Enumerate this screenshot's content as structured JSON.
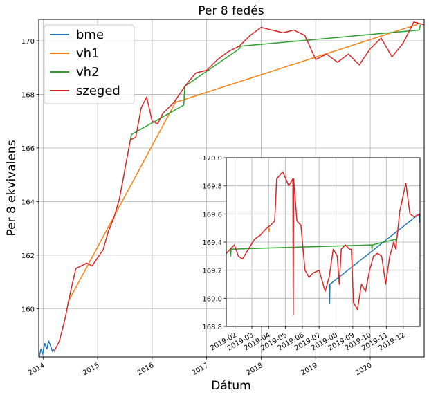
{
  "colors": {
    "bme": "#1f77b4",
    "vh1": "#ff7f0e",
    "vh2": "#2ca02c",
    "szeged": "#d62728",
    "grid": "#b0b0b0",
    "axis": "#000000"
  },
  "chart_data": [
    {
      "type": "line",
      "title": "Per 8 fedés",
      "xlabel": "Dátum",
      "ylabel": "Per 8 ekvivalens",
      "xlim": [
        2013.92,
        2020.99
      ],
      "ylim": [
        158.2,
        170.8
      ],
      "grid": true,
      "legend": "top-left",
      "x_ticks": [
        2014,
        2015,
        2016,
        2017,
        2018,
        2019,
        2020
      ],
      "x_tick_labels": [
        "2014",
        "2015",
        "2016",
        "2017",
        "2018",
        "2019",
        "2020"
      ],
      "y_ticks": [
        160,
        162,
        164,
        166,
        168,
        170
      ],
      "y_tick_labels": [
        "160",
        "162",
        "164",
        "166",
        "168",
        "170"
      ],
      "series": [
        {
          "name": "bme",
          "x": [
            2013.93,
            2013.96,
            2013.99,
            2014.03,
            2014.07,
            2014.1,
            2014.14,
            2014.17,
            2014.2
          ],
          "y": [
            158.2,
            158.5,
            158.3,
            158.7,
            158.5,
            158.8,
            158.6,
            158.4,
            158.5
          ]
        },
        {
          "name": "vh1",
          "x": [
            2014.45,
            2014.47,
            2016.4,
            2016.42,
            2020.85,
            2020.87
          ],
          "y": [
            160.2,
            160.3,
            167.6,
            167.7,
            170.6,
            170.7
          ]
        },
        {
          "name": "vh2",
          "x": [
            2015.6,
            2015.62,
            2016.58,
            2016.6,
            2017.6,
            2017.62,
            2020.9,
            2020.92
          ],
          "y": [
            166.3,
            166.5,
            167.6,
            168.3,
            169.7,
            169.8,
            170.4,
            170.6
          ]
        },
        {
          "name": "szeged",
          "x": [
            2014.2,
            2014.3,
            2014.4,
            2014.5,
            2014.6,
            2014.8,
            2014.9,
            2015.0,
            2015.1,
            2015.2,
            2015.3,
            2015.4,
            2015.5,
            2015.6,
            2015.7,
            2015.8,
            2015.9,
            2016.0,
            2016.1,
            2016.2,
            2016.4,
            2016.6,
            2016.8,
            2017.0,
            2017.2,
            2017.4,
            2017.6,
            2017.8,
            2018.0,
            2018.2,
            2018.4,
            2018.6,
            2018.8,
            2019.0,
            2019.2,
            2019.4,
            2019.6,
            2019.8,
            2020.0,
            2020.2,
            2020.4,
            2020.6,
            2020.8,
            2020.99
          ],
          "y": [
            158.4,
            158.8,
            159.6,
            160.6,
            161.5,
            161.7,
            161.6,
            161.9,
            162.2,
            162.9,
            163.4,
            164.1,
            165.2,
            166.3,
            166.4,
            167.5,
            167.9,
            167.0,
            166.9,
            167.3,
            167.7,
            168.3,
            168.8,
            168.9,
            169.3,
            169.6,
            169.8,
            170.2,
            170.5,
            170.4,
            170.3,
            170.4,
            170.2,
            169.3,
            169.5,
            169.2,
            169.5,
            169.1,
            169.7,
            170.1,
            169.4,
            169.9,
            170.7,
            170.6
          ]
        }
      ]
    },
    {
      "type": "line",
      "title": "",
      "xlabel": "",
      "ylabel": "",
      "xlim": [
        2019.04,
        2020.0
      ],
      "ylim": [
        168.8,
        170.0
      ],
      "grid": true,
      "x_ticks": [
        2019.083,
        2019.167,
        2019.25,
        2019.333,
        2019.417,
        2019.5,
        2019.583,
        2019.667,
        2019.75,
        2019.833,
        2019.917
      ],
      "x_tick_labels": [
        "2019-02",
        "2019-03",
        "2019-04",
        "2019-05",
        "2019-06",
        "2019-07",
        "2019-08",
        "2019-09",
        "2019-10",
        "2019-11",
        "2019-12"
      ],
      "y_ticks": [
        168.8,
        169.0,
        169.2,
        169.4,
        169.6,
        169.8,
        170.0
      ],
      "y_tick_labels": [
        "168.8",
        "169.0",
        "169.2",
        "169.4",
        "169.6",
        "169.8",
        "170.0"
      ],
      "series": [
        {
          "name": "bme",
          "x": [
            2019.55,
            2019.552,
            2019.554,
            2019.996,
            2019.998,
            2020.0
          ],
          "y": [
            169.1,
            168.96,
            169.1,
            169.6,
            169.54,
            169.6
          ]
        },
        {
          "name": "vh1",
          "x": [
            2019.25,
            2019.252,
            2019.254
          ],
          "y": [
            169.5,
            169.47,
            169.5
          ]
        },
        {
          "name": "vh2",
          "x": [
            2019.06,
            2019.062,
            2019.064,
            2019.76,
            2019.762,
            2019.764,
            2019.88,
            2019.882,
            2019.884
          ],
          "y": [
            169.35,
            169.3,
            169.35,
            169.38,
            169.35,
            169.38,
            169.42,
            169.4,
            169.42
          ]
        },
        {
          "name": "szeged",
          "x": [
            2019.04,
            2019.06,
            2019.08,
            2019.1,
            2019.12,
            2019.15,
            2019.18,
            2019.21,
            2019.24,
            2019.26,
            2019.28,
            2019.29,
            2019.32,
            2019.35,
            2019.37,
            2019.372,
            2019.374,
            2019.39,
            2019.41,
            2019.43,
            2019.45,
            2019.47,
            2019.5,
            2019.53,
            2019.55,
            2019.57,
            2019.59,
            2019.6,
            2019.61,
            2019.63,
            2019.65,
            2019.66,
            2019.67,
            2019.69,
            2019.71,
            2019.73,
            2019.75,
            2019.77,
            2019.79,
            2019.81,
            2019.83,
            2019.85,
            2019.87,
            2019.88,
            2019.9,
            2019.93,
            2019.95,
            2019.97,
            2020.0
          ],
          "y": [
            169.32,
            169.35,
            169.38,
            169.3,
            169.28,
            169.35,
            169.42,
            169.45,
            169.5,
            169.52,
            169.55,
            169.85,
            169.9,
            169.8,
            169.85,
            168.88,
            169.85,
            169.55,
            169.52,
            169.2,
            169.15,
            169.18,
            169.2,
            169.05,
            169.15,
            169.35,
            169.3,
            169.1,
            169.35,
            169.38,
            169.35,
            169.35,
            168.97,
            168.92,
            169.1,
            169.05,
            169.2,
            169.3,
            169.32,
            169.3,
            169.1,
            169.3,
            169.4,
            169.35,
            169.62,
            169.82,
            169.6,
            169.58,
            169.6
          ]
        }
      ]
    }
  ]
}
